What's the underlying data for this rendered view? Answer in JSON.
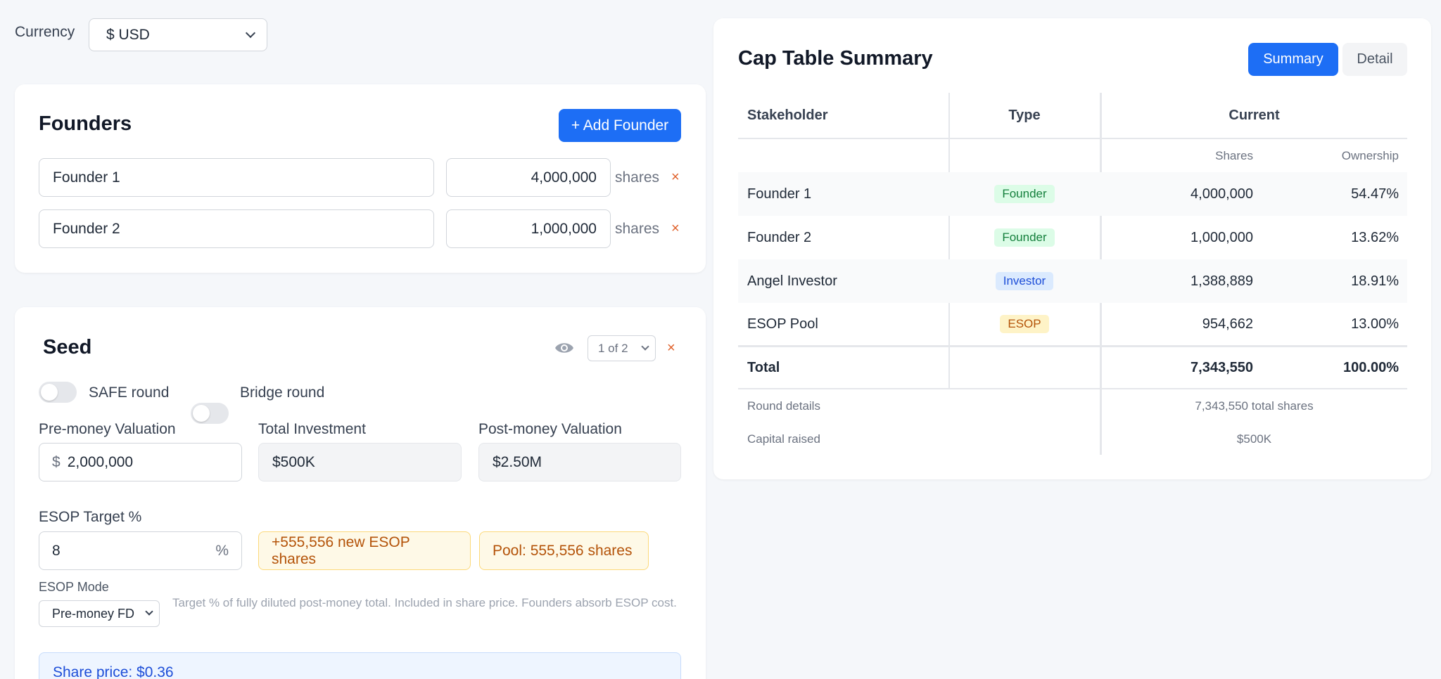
{
  "currency": {
    "label": "Currency",
    "value": "$ USD"
  },
  "founders": {
    "title": "Founders",
    "add_button": "+ Add Founder",
    "rows": [
      {
        "name": "Founder 1",
        "shares": "4,000,000",
        "unit": "shares",
        "remove": "×"
      },
      {
        "name": "Founder 2",
        "shares": "1,000,000",
        "unit": "shares",
        "remove": "×"
      }
    ]
  },
  "seed": {
    "title": "Seed",
    "page_select": "1 of 2",
    "remove": "×",
    "safe_label": "SAFE round",
    "bridge_label": "Bridge round",
    "pre_money_label": "Pre-money Valuation",
    "pre_money_prefix": "$",
    "pre_money_value": "2,000,000",
    "total_investment_label": "Total Investment",
    "total_investment_value": "$500K",
    "post_money_label": "Post-money Valuation",
    "post_money_value": "$2.50M",
    "esop_target_label": "ESOP Target %",
    "esop_target_value": "8",
    "esop_target_suffix": "%",
    "new_esop_badge": "+555,556 new ESOP shares",
    "pool_badge": "Pool: 555,556 shares",
    "esop_mode_label": "ESOP Mode",
    "esop_mode_value": "Pre-money FD",
    "esop_mode_help": "Target % of fully diluted post-money total. Included in share price. Founders absorb ESOP cost.",
    "share_price": "Share price: $0.36"
  },
  "summary": {
    "title": "Cap Table Summary",
    "tab_summary": "Summary",
    "tab_detail": "Detail",
    "headers": {
      "stakeholder": "Stakeholder",
      "type": "Type",
      "current": "Current",
      "shares": "Shares",
      "ownership": "Ownership"
    },
    "rows": [
      {
        "name": "Founder 1",
        "type": "Founder",
        "shares": "4,000,000",
        "ownership": "54.47%"
      },
      {
        "name": "Founder 2",
        "type": "Founder",
        "shares": "1,000,000",
        "ownership": "13.62%"
      },
      {
        "name": "Angel Investor",
        "type": "Investor",
        "shares": "1,388,889",
        "ownership": "18.91%"
      },
      {
        "name": "ESOP Pool",
        "type": "ESOP",
        "shares": "954,662",
        "ownership": "13.00%"
      }
    ],
    "total": {
      "label": "Total",
      "shares": "7,343,550",
      "ownership": "100.00%"
    },
    "round_details_label": "Round details",
    "round_details_value": "7,343,550 total shares",
    "capital_raised_label": "Capital raised",
    "capital_raised_value": "$500K"
  },
  "colors": {
    "accent": "#1d6ef5",
    "danger": "#e0612b",
    "warn_text": "#b45309"
  }
}
